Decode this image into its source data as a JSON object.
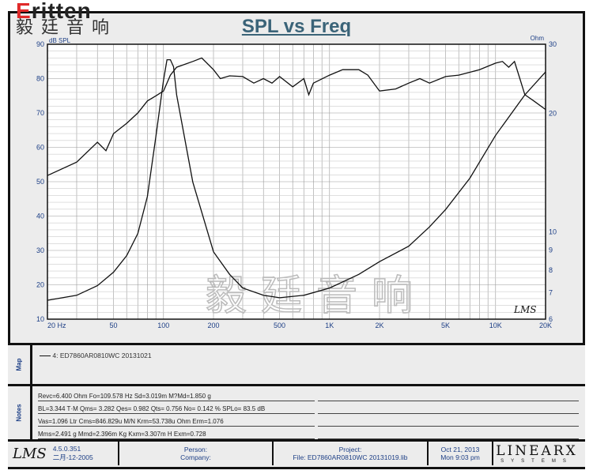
{
  "logo": {
    "brand": "Eritten",
    "chinese": "毅廷音响"
  },
  "watermark": "毅廷音响",
  "chart_data": {
    "type": "line",
    "title": "SPL vs Freq",
    "xscale": "log",
    "xlim": [
      20,
      20000
    ],
    "xticks": [
      {
        "v": 20,
        "l": "20  Hz"
      },
      {
        "v": 50,
        "l": "50"
      },
      {
        "v": 100,
        "l": "100"
      },
      {
        "v": 200,
        "l": "200"
      },
      {
        "v": 500,
        "l": "500"
      },
      {
        "v": 1000,
        "l": "1K"
      },
      {
        "v": 2000,
        "l": "2K"
      },
      {
        "v": 5000,
        "l": "5K"
      },
      {
        "v": 10000,
        "l": "10K"
      },
      {
        "v": 20000,
        "l": "20K"
      }
    ],
    "ylabel": "dB SPL",
    "ylim": [
      10,
      90
    ],
    "yticks": [
      10,
      20,
      30,
      40,
      50,
      60,
      70,
      80,
      90
    ],
    "y2label": "Ohm",
    "y2scale": "log",
    "y2lim": [
      6,
      30
    ],
    "y2ticks": [
      6,
      7,
      8,
      9,
      10,
      20,
      30
    ],
    "grid": true,
    "series": [
      {
        "axis": "left",
        "points": [
          [
            20,
            51.8
          ],
          [
            30,
            55.7
          ],
          [
            40,
            61.5
          ],
          [
            45,
            59
          ],
          [
            50,
            64
          ],
          [
            60,
            67
          ],
          [
            70,
            70
          ],
          [
            80,
            73.5
          ],
          [
            90,
            75
          ],
          [
            100,
            76.4
          ],
          [
            110,
            81
          ],
          [
            120,
            83.3
          ],
          [
            150,
            85
          ],
          [
            170,
            86
          ],
          [
            200,
            82.6
          ],
          [
            220,
            80
          ],
          [
            250,
            80.8
          ],
          [
            300,
            80.6
          ],
          [
            350,
            78.7
          ],
          [
            400,
            80
          ],
          [
            450,
            78.7
          ],
          [
            500,
            80.6
          ],
          [
            600,
            77.6
          ],
          [
            700,
            80
          ],
          [
            750,
            75.3
          ],
          [
            800,
            78.7
          ],
          [
            1000,
            81
          ],
          [
            1200,
            82.6
          ],
          [
            1500,
            82.6
          ],
          [
            1700,
            81
          ],
          [
            2000,
            76.4
          ],
          [
            2500,
            77
          ],
          [
            3000,
            78.7
          ],
          [
            3500,
            80
          ],
          [
            4000,
            78.7
          ],
          [
            5000,
            80.6
          ],
          [
            6000,
            81
          ],
          [
            8000,
            82.6
          ],
          [
            10000,
            84.5
          ],
          [
            11000,
            85
          ],
          [
            12000,
            83.3
          ],
          [
            13000,
            85
          ],
          [
            14000,
            80
          ],
          [
            15000,
            75.3
          ],
          [
            17000,
            73.5
          ],
          [
            20000,
            71
          ]
        ]
      },
      {
        "axis": "right",
        "points": [
          [
            20,
            6.7
          ],
          [
            30,
            6.9
          ],
          [
            40,
            7.3
          ],
          [
            50,
            7.9
          ],
          [
            60,
            8.7
          ],
          [
            70,
            9.9
          ],
          [
            80,
            12.3
          ],
          [
            90,
            17.5
          ],
          [
            100,
            24.3
          ],
          [
            105,
            27.4
          ],
          [
            110,
            27.4
          ],
          [
            115,
            26.3
          ],
          [
            120,
            22.3
          ],
          [
            150,
            13.4
          ],
          [
            200,
            8.9
          ],
          [
            250,
            7.8
          ],
          [
            300,
            7.2
          ],
          [
            400,
            6.9
          ],
          [
            500,
            6.8
          ],
          [
            700,
            6.9
          ],
          [
            1000,
            7.2
          ],
          [
            1500,
            7.8
          ],
          [
            2000,
            8.4
          ],
          [
            3000,
            9.2
          ],
          [
            4000,
            10.3
          ],
          [
            5000,
            11.4
          ],
          [
            7000,
            13.7
          ],
          [
            10000,
            17.6
          ],
          [
            15000,
            22.3
          ],
          [
            20000,
            25.5
          ]
        ]
      }
    ]
  },
  "map": {
    "label": "Map",
    "legend": "4: ED7860AR0810WC   20131021"
  },
  "notes": {
    "label": "Notes",
    "lines": [
      "Revc=6.400 Ohm  Fo=109.578 Hz  Sd=3.019m M?Md=1.850 g",
      "BL=3.344 T·M  Qms= 3.282  Qes= 0.982  Qts= 0.756  No= 0.142 %  SPLo= 83.5 dB",
      "Vas=1.096 Ltr  Cms=846.829u M/N  Krm=53.738u Ohm  Erm=1.076",
      "Mms=2.491 g  Mmd=2.396m Kg  Kxm=3.307m H  Exm=0.728"
    ]
  },
  "footer": {
    "lms_logo": "LMS",
    "version": "4.5.0.351",
    "build_date": "二月-12-2005",
    "person": "Person:",
    "company": "Company:",
    "project": "Project:",
    "file": "File: ED7860AR0810WC 20131019.lib",
    "date": "Oct 21, 2013",
    "time": "Mon  9:03 pm",
    "brand": "LINEARX",
    "brand_sub": "SYSTEMS"
  }
}
